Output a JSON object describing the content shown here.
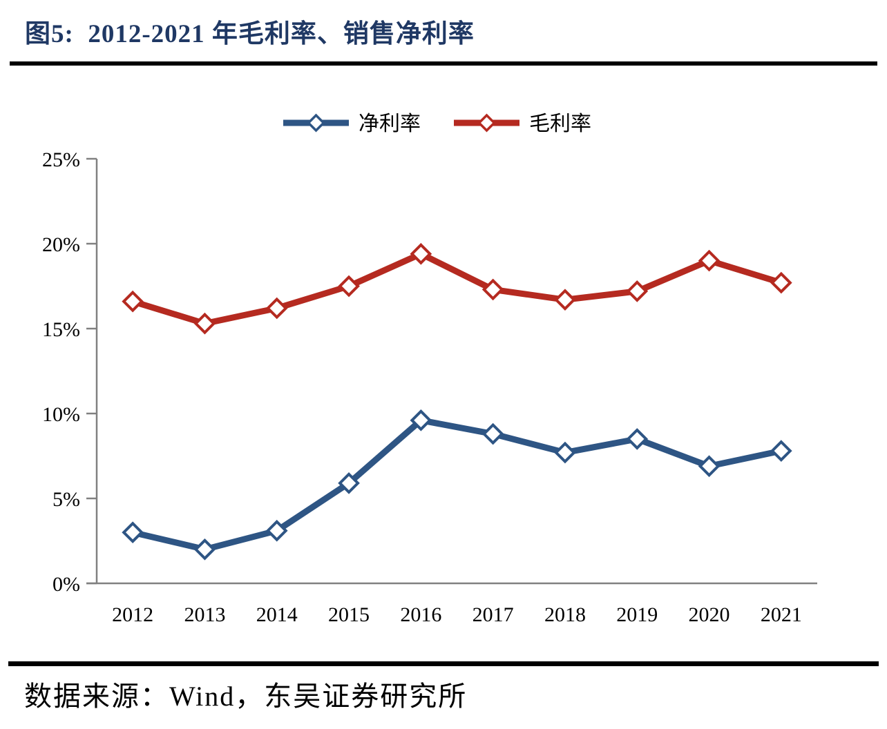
{
  "figure": {
    "title": "图5:  2012-2021 年毛利率、销售净利率",
    "source": "数据来源：Wind，东吴证券研究所"
  },
  "colors": {
    "title_navy": "#1F3864",
    "net_margin_blue": "#2E5584",
    "gross_margin_red": "#B52A20",
    "axis_gray": "#808080",
    "rule_black": "#000000"
  },
  "chart_data": {
    "type": "line",
    "title": "2012-2021 年毛利率、销售净利率",
    "categories": [
      "2012",
      "2013",
      "2014",
      "2015",
      "2016",
      "2017",
      "2018",
      "2019",
      "2020",
      "2021"
    ],
    "series": [
      {
        "id": "net-profit-margin",
        "name": "净利率",
        "color": "#2E5584",
        "marker": "diamond",
        "values": [
          3.0,
          2.0,
          3.1,
          5.9,
          9.6,
          8.8,
          7.7,
          8.5,
          6.9,
          7.8
        ]
      },
      {
        "id": "gross-profit-margin",
        "name": "毛利率",
        "color": "#B52A20",
        "marker": "diamond",
        "values": [
          16.6,
          15.3,
          16.2,
          17.5,
          19.4,
          17.3,
          16.7,
          17.2,
          19.0,
          17.7
        ]
      }
    ],
    "xlabel": "",
    "ylabel": "",
    "ylim": [
      0,
      25
    ],
    "ytick_step": 5,
    "ytick_suffix": "%",
    "ytick_labels": [
      "0%",
      "5%",
      "10%",
      "15%",
      "20%",
      "25%"
    ],
    "grid": false,
    "legend_position": "top",
    "axis_color": "#808080"
  }
}
